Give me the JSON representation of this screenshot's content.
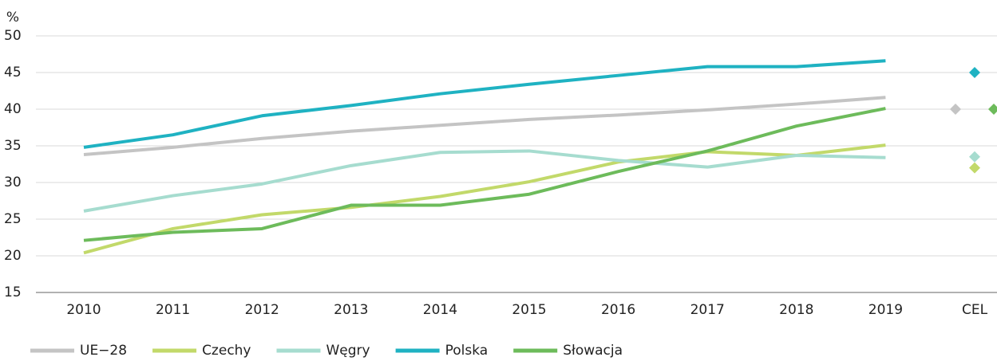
{
  "chart_data": {
    "type": "line",
    "y_label": "%",
    "categories": [
      "2010",
      "2011",
      "2012",
      "2013",
      "2014",
      "2015",
      "2016",
      "2017",
      "2018",
      "2019",
      "CEL"
    ],
    "series": [
      {
        "name": "UE−28",
        "color": "#c4c4c4",
        "values": [
          33.8,
          34.8,
          36,
          37,
          37.8,
          38.6,
          39.2,
          39.9,
          40.7,
          41.6,
          null
        ],
        "target": 40
      },
      {
        "name": "Czechy",
        "color": "#c2d96a",
        "values": [
          20.4,
          23.7,
          25.6,
          26.6,
          28.1,
          30.1,
          32.8,
          34.2,
          33.7,
          35.1,
          null
        ],
        "target": 32
      },
      {
        "name": "Węgry",
        "color": "#a6dccf",
        "values": [
          26.1,
          28.2,
          29.8,
          32.3,
          34.1,
          34.3,
          33,
          32.1,
          33.7,
          33.4,
          null
        ],
        "target": 33.5
      },
      {
        "name": "Polska",
        "color": "#1fb2c2",
        "values": [
          34.8,
          36.5,
          39.1,
          40.5,
          42.1,
          43.4,
          44.6,
          45.8,
          45.8,
          46.6,
          null
        ],
        "target": 45
      },
      {
        "name": "Słowacja",
        "color": "#6dbb5b",
        "values": [
          22.1,
          23.2,
          23.7,
          26.9,
          26.9,
          28.4,
          31.5,
          34.3,
          37.7,
          40.1,
          null
        ],
        "target": 40
      }
    ],
    "ylim": [
      15,
      50
    ],
    "yticks": [
      15,
      20,
      25,
      30,
      35,
      40,
      45,
      50
    ],
    "grid": true
  }
}
